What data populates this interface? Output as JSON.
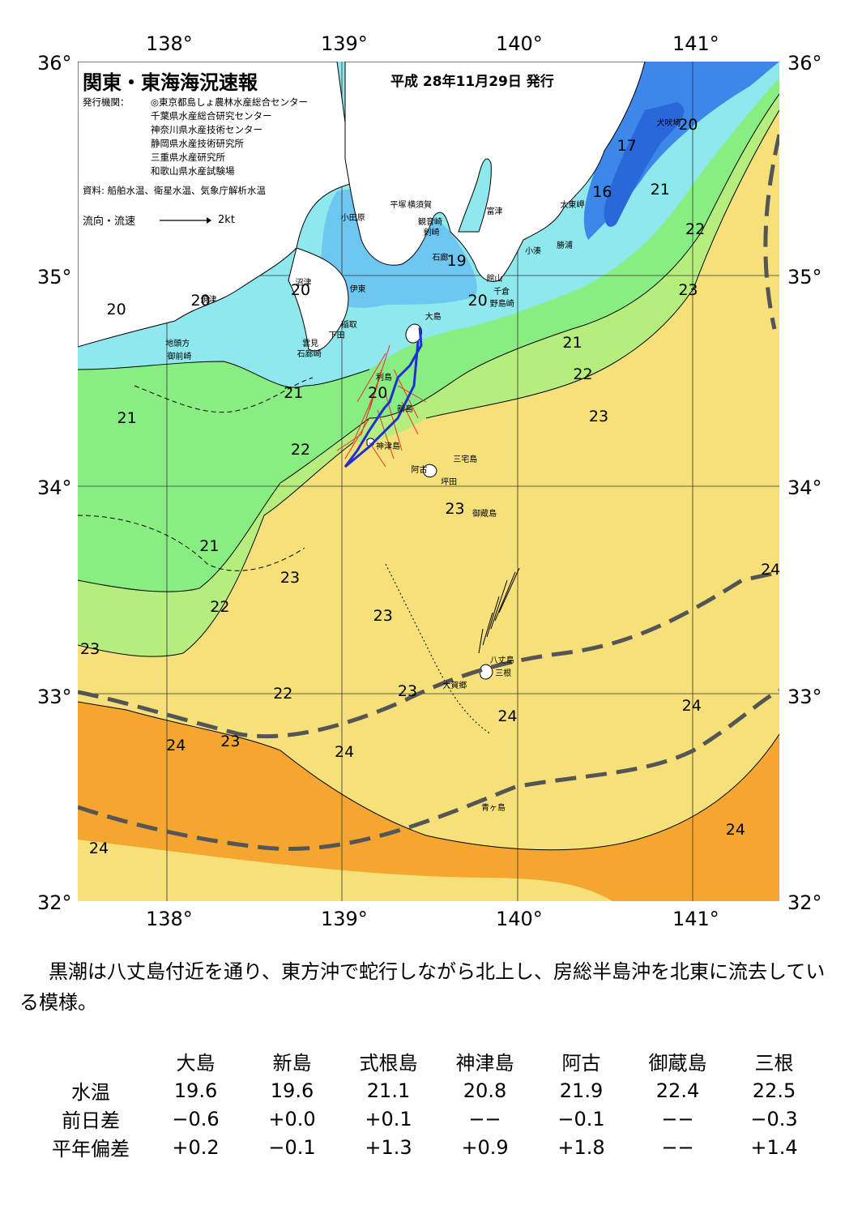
{
  "axes": {
    "lon_labels": [
      "138°",
      "139°",
      "140°",
      "141°"
    ],
    "lat_labels": [
      "36°",
      "35°",
      "34°",
      "33°",
      "32°"
    ]
  },
  "title": "関東・東海海況速報",
  "issue_date": "平成 28年11月29日 発行",
  "issuers": {
    "heading": "発行機関：",
    "orgs": [
      "◎東京都島しょ農林水産総合センター",
      "千葉県水産総合研究センター",
      "神奈川県水産技術センター",
      "静岡県水産技術研究所",
      "三重県水産研究所",
      "和歌山県水産試験場"
    ]
  },
  "source": "資料: 船舶水温、衛星水温、気象庁解析水温",
  "flow_legend": {
    "label": "流向・流速",
    "scale": "2kt"
  },
  "colors": {
    "t16": "#2a67d9",
    "t17": "#3c87e8",
    "t19": "#6ec7f0",
    "t20": "#8ee8ee",
    "t21": "#88ee82",
    "t22": "#b6ee7e",
    "t23": "#f6e07a",
    "t24": "#f4a630",
    "kuroshio_axis": "#555555",
    "land": "#ffffff",
    "current_vector": "#e83030",
    "ship_track": "#2030d0"
  },
  "temperature_labels": [
    {
      "text": "20",
      "lon": 137.72,
      "lat": 34.82
    },
    {
      "text": "20",
      "lon": 138.2,
      "lat": 34.86
    },
    {
      "text": "20",
      "lon": 138.77,
      "lat": 34.91
    },
    {
      "text": "19",
      "lon": 139.66,
      "lat": 35.05
    },
    {
      "text": "20",
      "lon": 139.78,
      "lat": 34.86
    },
    {
      "text": "20",
      "lon": 140.98,
      "lat": 35.7
    },
    {
      "text": "17",
      "lon": 140.63,
      "lat": 35.6
    },
    {
      "text": "16",
      "lon": 140.49,
      "lat": 35.38
    },
    {
      "text": "21",
      "lon": 140.82,
      "lat": 35.39
    },
    {
      "text": "22",
      "lon": 141.02,
      "lat": 35.2
    },
    {
      "text": "23",
      "lon": 140.98,
      "lat": 34.91
    },
    {
      "text": "21",
      "lon": 140.32,
      "lat": 34.66
    },
    {
      "text": "22",
      "lon": 140.38,
      "lat": 34.51
    },
    {
      "text": "23",
      "lon": 140.47,
      "lat": 34.31
    },
    {
      "text": "21",
      "lon": 138.73,
      "lat": 34.42
    },
    {
      "text": "20",
      "lon": 139.21,
      "lat": 34.42
    },
    {
      "text": "21",
      "lon": 137.78,
      "lat": 34.3
    },
    {
      "text": "22",
      "lon": 138.77,
      "lat": 34.15
    },
    {
      "text": "23",
      "lon": 139.65,
      "lat": 33.87
    },
    {
      "text": "21",
      "lon": 138.25,
      "lat": 33.69
    },
    {
      "text": "23",
      "lon": 138.71,
      "lat": 33.54
    },
    {
      "text": "22",
      "lon": 138.31,
      "lat": 33.4
    },
    {
      "text": "23",
      "lon": 139.24,
      "lat": 33.36
    },
    {
      "text": "23",
      "lon": 137.57,
      "lat": 33.2
    },
    {
      "text": "22",
      "lon": 138.67,
      "lat": 32.99
    },
    {
      "text": "23",
      "lon": 139.38,
      "lat": 33.0
    },
    {
      "text": "24",
      "lon": 139.95,
      "lat": 32.88
    },
    {
      "text": "24",
      "lon": 141.0,
      "lat": 32.93
    },
    {
      "text": "24",
      "lon": 141.45,
      "lat": 33.58
    },
    {
      "text": "24",
      "lon": 138.06,
      "lat": 32.74
    },
    {
      "text": "23",
      "lon": 138.37,
      "lat": 32.76
    },
    {
      "text": "24",
      "lon": 139.02,
      "lat": 32.71
    },
    {
      "text": "24",
      "lon": 141.25,
      "lat": 32.34
    },
    {
      "text": "24",
      "lon": 137.62,
      "lat": 32.25
    }
  ],
  "place_labels": [
    {
      "text": "犬吠埼",
      "lon": 140.8,
      "lat": 35.74
    },
    {
      "text": "太東岬",
      "lon": 140.25,
      "lat": 35.35
    },
    {
      "text": "勝浦",
      "lon": 140.23,
      "lat": 35.16
    },
    {
      "text": "小湊",
      "lon": 140.05,
      "lat": 35.13
    },
    {
      "text": "富津",
      "lon": 139.83,
      "lat": 35.32
    },
    {
      "text": "横須賀",
      "lon": 139.38,
      "lat": 35.35
    },
    {
      "text": "観音崎",
      "lon": 139.44,
      "lat": 35.27
    },
    {
      "text": "剣崎",
      "lon": 139.47,
      "lat": 35.22
    },
    {
      "text": "平塚",
      "lon": 139.28,
      "lat": 35.35
    },
    {
      "text": "小田原",
      "lon": 139.0,
      "lat": 35.29
    },
    {
      "text": "石廊",
      "lon": 139.52,
      "lat": 35.1
    },
    {
      "text": "館山",
      "lon": 139.83,
      "lat": 35.0
    },
    {
      "text": "千倉",
      "lon": 139.87,
      "lat": 34.94
    },
    {
      "text": "野島崎",
      "lon": 139.85,
      "lat": 34.88
    },
    {
      "text": "沼津",
      "lon": 138.74,
      "lat": 34.98
    },
    {
      "text": "伊東",
      "lon": 139.05,
      "lat": 34.95
    },
    {
      "text": "焼津",
      "lon": 138.2,
      "lat": 34.9
    },
    {
      "text": "稲取",
      "lon": 139.0,
      "lat": 34.78
    },
    {
      "text": "下田",
      "lon": 138.93,
      "lat": 34.73
    },
    {
      "text": "雲見",
      "lon": 138.78,
      "lat": 34.69
    },
    {
      "text": "石廊崎",
      "lon": 138.75,
      "lat": 34.64
    },
    {
      "text": "地頭方",
      "lon": 138.0,
      "lat": 34.69
    },
    {
      "text": "御前崎",
      "lon": 138.01,
      "lat": 34.63
    },
    {
      "text": "大島",
      "lon": 139.48,
      "lat": 34.82
    },
    {
      "text": "利島",
      "lon": 139.2,
      "lat": 34.53
    },
    {
      "text": "新島",
      "lon": 139.32,
      "lat": 34.38
    },
    {
      "text": "神津島",
      "lon": 139.2,
      "lat": 34.2
    },
    {
      "text": "三宅島",
      "lon": 139.64,
      "lat": 34.14
    },
    {
      "text": "阿古",
      "lon": 139.4,
      "lat": 34.09
    },
    {
      "text": "坪田",
      "lon": 139.57,
      "lat": 34.03
    },
    {
      "text": "御蔵島",
      "lon": 139.75,
      "lat": 33.88
    },
    {
      "text": "八丈島",
      "lon": 139.85,
      "lat": 33.18
    },
    {
      "text": "三根",
      "lon": 139.88,
      "lat": 33.12
    },
    {
      "text": "大賀郷",
      "lon": 139.58,
      "lat": 33.06
    },
    {
      "text": "青ヶ島",
      "lon": 139.8,
      "lat": 32.48
    }
  ],
  "summary": "黒潮は八丈島付近を通り、東方沖で蛇行しながら北上し、房総半島沖を北東に流去している模様。",
  "table": {
    "stations": [
      "大島",
      "新島",
      "式根島",
      "神津島",
      "阿古",
      "御蔵島",
      "三根"
    ],
    "rows": [
      {
        "label": "水温",
        "values": [
          "19.6",
          "19.6",
          "21.1",
          "20.8",
          "21.9",
          "22.4",
          "22.5"
        ]
      },
      {
        "label": "前日差",
        "values": [
          "−0.6",
          "+0.0",
          "+0.1",
          "−−",
          "−0.1",
          "−−",
          "−0.3"
        ]
      },
      {
        "label": "平年偏差",
        "values": [
          "+0.2",
          "−0.1",
          "+1.3",
          "+0.9",
          "+1.8",
          "−−",
          "+1.4"
        ]
      }
    ]
  }
}
